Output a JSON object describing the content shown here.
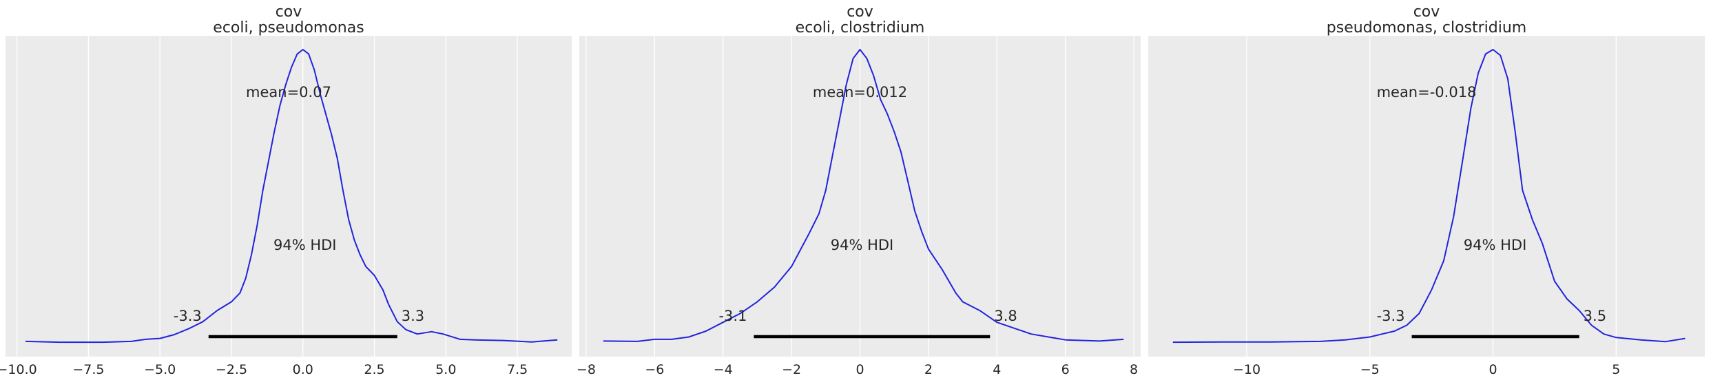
{
  "figure": {
    "background": "#ffffff",
    "panel_background": "#ebebeb",
    "grid_color": "#ffffff",
    "curve_color": "#2222dd",
    "hdi_color": "#000000"
  },
  "chart_data": [
    {
      "type": "line",
      "title": "cov\necoli, pseudomonas",
      "title_lines": [
        "cov",
        "ecoli, pseudomonas"
      ],
      "xlabel": "",
      "ylabel": "",
      "xlim": [
        -10.4,
        9.4
      ],
      "xticks": [
        -10.0,
        -7.5,
        -5.0,
        -2.5,
        0.0,
        2.5,
        5.0,
        7.5
      ],
      "xtick_labels": [
        "−10.0",
        "−7.5",
        "−5.0",
        "−2.5",
        "0.0",
        "2.5",
        "5.0",
        "7.5"
      ],
      "grid": true,
      "mean_label": "mean=0.07",
      "hdi_label": "94% HDI",
      "hdi": [
        -3.3,
        3.3
      ],
      "hdi_low_label": "-3.3",
      "hdi_high_label": "3.3",
      "density": {
        "x": [
          -9.7,
          -8.5,
          -7.0,
          -6.0,
          -5.5,
          -5.0,
          -4.5,
          -4.0,
          -3.5,
          -3.0,
          -2.5,
          -2.2,
          -2.0,
          -1.8,
          -1.6,
          -1.4,
          -1.2,
          -1.0,
          -0.8,
          -0.6,
          -0.4,
          -0.2,
          0.0,
          0.2,
          0.4,
          0.6,
          0.8,
          1.0,
          1.2,
          1.4,
          1.6,
          1.8,
          2.0,
          2.2,
          2.5,
          2.8,
          3.0,
          3.3,
          3.6,
          4.0,
          4.5,
          4.9,
          5.5,
          6.0,
          7.0,
          8.0,
          8.9
        ],
        "y": [
          0.005,
          0.002,
          0.002,
          0.005,
          0.012,
          0.015,
          0.028,
          0.048,
          0.072,
          0.11,
          0.14,
          0.17,
          0.22,
          0.3,
          0.4,
          0.52,
          0.62,
          0.72,
          0.81,
          0.88,
          0.94,
          0.985,
          1.0,
          0.985,
          0.93,
          0.85,
          0.78,
          0.71,
          0.63,
          0.52,
          0.42,
          0.35,
          0.3,
          0.26,
          0.23,
          0.18,
          0.13,
          0.072,
          0.045,
          0.03,
          0.038,
          0.03,
          0.012,
          0.01,
          0.008,
          0.003,
          0.01
        ]
      }
    },
    {
      "type": "line",
      "title": "cov\necoli, clostridium",
      "title_lines": [
        "cov",
        "ecoli, clostridium"
      ],
      "xlabel": "",
      "ylabel": "",
      "xlim": [
        -8.2,
        8.2
      ],
      "xticks": [
        -8,
        -6,
        -4,
        -2,
        0,
        2,
        4,
        6,
        8
      ],
      "xtick_labels": [
        "−8",
        "−6",
        "−4",
        "−2",
        "0",
        "2",
        "4",
        "6",
        "8"
      ],
      "grid": true,
      "mean_label": "mean=0.012",
      "hdi_label": "94% HDI",
      "hdi": [
        -3.1,
        3.8
      ],
      "hdi_low_label": "-3.1",
      "hdi_high_label": "3.8",
      "density": {
        "x": [
          -7.5,
          -6.5,
          -6.0,
          -5.5,
          -5.0,
          -4.5,
          -4.0,
          -3.5,
          -3.0,
          -2.5,
          -2.0,
          -1.5,
          -1.2,
          -1.0,
          -0.8,
          -0.6,
          -0.4,
          -0.2,
          0.0,
          0.2,
          0.4,
          0.6,
          0.8,
          1.0,
          1.2,
          1.4,
          1.6,
          1.8,
          2.0,
          2.4,
          2.8,
          3.0,
          3.5,
          4.0,
          4.5,
          5.0,
          6.0,
          7.0,
          7.7
        ],
        "y": [
          0.006,
          0.005,
          0.012,
          0.012,
          0.02,
          0.04,
          0.07,
          0.1,
          0.14,
          0.19,
          0.26,
          0.37,
          0.44,
          0.52,
          0.64,
          0.76,
          0.88,
          0.97,
          1.0,
          0.97,
          0.91,
          0.83,
          0.78,
          0.72,
          0.65,
          0.55,
          0.45,
          0.38,
          0.32,
          0.25,
          0.17,
          0.14,
          0.11,
          0.07,
          0.05,
          0.03,
          0.01,
          0.006,
          0.012
        ]
      }
    },
    {
      "type": "line",
      "title": "cov\npseudomonas, clostridium",
      "title_lines": [
        "cov",
        "pseudomonas, clostridium"
      ],
      "xlabel": "",
      "ylabel": "",
      "xlim": [
        -14.0,
        8.6
      ],
      "xticks": [
        -10,
        -5,
        0,
        5
      ],
      "xtick_labels": [
        "−10",
        "−5",
        "0",
        "5"
      ],
      "grid": true,
      "mean_label": "mean=-0.018",
      "hdi_label": "94% HDI",
      "hdi": [
        -3.3,
        3.5
      ],
      "hdi_low_label": "-3.3",
      "hdi_high_label": "3.5",
      "density": {
        "x": [
          -13.0,
          -11.0,
          -9.0,
          -7.0,
          -6.0,
          -5.0,
          -4.5,
          -4.0,
          -3.5,
          -3.0,
          -2.5,
          -2.0,
          -1.6,
          -1.2,
          -0.9,
          -0.6,
          -0.3,
          0.0,
          0.3,
          0.6,
          0.9,
          1.2,
          1.6,
          2.0,
          2.5,
          3.0,
          3.5,
          4.0,
          4.5,
          5.0,
          6.0,
          7.0,
          7.8
        ],
        "y": [
          0.002,
          0.003,
          0.003,
          0.005,
          0.01,
          0.02,
          0.03,
          0.04,
          0.06,
          0.1,
          0.18,
          0.28,
          0.43,
          0.64,
          0.8,
          0.92,
          0.985,
          1.0,
          0.98,
          0.9,
          0.72,
          0.52,
          0.42,
          0.34,
          0.21,
          0.15,
          0.11,
          0.06,
          0.03,
          0.018,
          0.01,
          0.004,
          0.015
        ]
      }
    }
  ]
}
